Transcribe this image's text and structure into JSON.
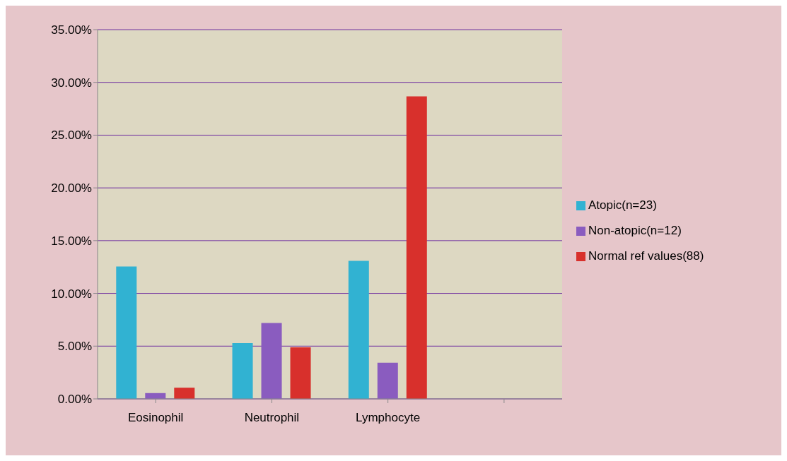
{
  "chart_data": {
    "type": "bar",
    "categories": [
      "Eosinophil",
      "Neutrophil",
      "Lymphocyte",
      null
    ],
    "series": [
      {
        "name": "Atopic(n=23)",
        "color": "#31b2d2",
        "values": [
          12.55,
          5.28,
          13.08,
          null
        ]
      },
      {
        "name": "Non-atopic(n=12)",
        "color": "#8a5cbf",
        "values": [
          0.55,
          7.2,
          3.43,
          null
        ]
      },
      {
        "name": "Normal ref values(88)",
        "color": "#d8302c",
        "values": [
          1.06,
          4.89,
          28.67,
          null
        ]
      }
    ],
    "ylim": [
      0,
      35
    ],
    "yticks": [
      {
        "value": 0,
        "label": "0.00%"
      },
      {
        "value": 5,
        "label": "5.00%"
      },
      {
        "value": 10,
        "label": "10.00%"
      },
      {
        "value": 15,
        "label": "15.00%"
      },
      {
        "value": 20,
        "label": "20.00%"
      },
      {
        "value": 25,
        "label": "25.00%"
      },
      {
        "value": 30,
        "label": "30.00%"
      },
      {
        "value": 35,
        "label": "35.00%"
      }
    ],
    "grid": "y",
    "legend": "right"
  }
}
